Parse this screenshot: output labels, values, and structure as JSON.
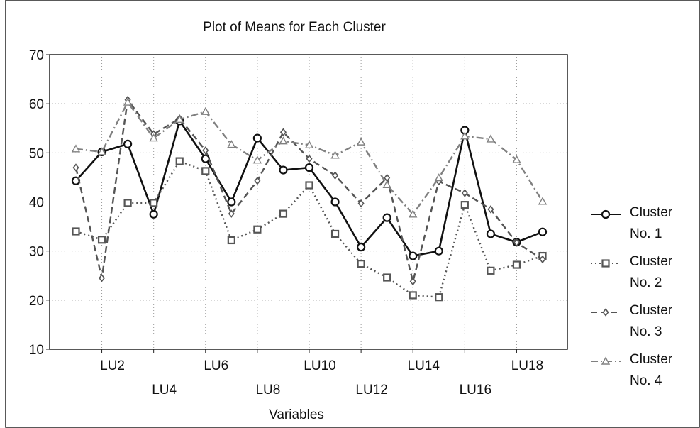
{
  "chart_data": {
    "type": "line",
    "title": "Plot of Means for Each Cluster",
    "x_label": "Variables",
    "categories": [
      null,
      "LU2",
      null,
      "LU4",
      null,
      "LU6",
      null,
      "LU8",
      null,
      "LU10",
      null,
      "LU12",
      null,
      "LU14",
      null,
      "LU16",
      null,
      "LU18",
      null
    ],
    "ylim": [
      10,
      70
    ],
    "yticks": [
      10,
      20,
      30,
      40,
      50,
      60,
      70
    ],
    "grid": true,
    "series": [
      {
        "name": "Cluster No. 1",
        "color": "#111111",
        "dash": "solid",
        "marker": "circle",
        "values": [
          44.3,
          50.2,
          51.8,
          37.5,
          56.5,
          48.8,
          40,
          53,
          46.5,
          47,
          40,
          30.8,
          36.8,
          29,
          30,
          54.6,
          33.5,
          31.8,
          33.9
        ]
      },
      {
        "name": "Cluster No. 2",
        "color": "#555555",
        "dash": "dotted",
        "marker": "square",
        "values": [
          34,
          32.3,
          39.8,
          39.8,
          48.3,
          46.3,
          32.2,
          34.4,
          37.6,
          43.4,
          33.5,
          27.4,
          24.6,
          21,
          20.6,
          39.4,
          26,
          27.2,
          29
        ]
      },
      {
        "name": "Cluster No. 3",
        "color": "#555555",
        "dash": "dashed",
        "marker": "diamond",
        "values": [
          47,
          24.5,
          60.8,
          53.8,
          57,
          50.5,
          37.6,
          44.3,
          54.2,
          48.8,
          45.4,
          39.7,
          44.9,
          23.8,
          44.2,
          41.8,
          38.5,
          31.7,
          28.3
        ]
      },
      {
        "name": "Cluster No. 4",
        "color": "#808080",
        "dash": "dashdot",
        "marker": "triangle",
        "values": [
          50.8,
          50.2,
          60.3,
          53,
          56.8,
          58.4,
          51.7,
          48.5,
          52.4,
          51.6,
          49.5,
          52.2,
          43.5,
          37.5,
          44.9,
          53.4,
          52.8,
          48.6,
          40.1
        ]
      }
    ]
  }
}
